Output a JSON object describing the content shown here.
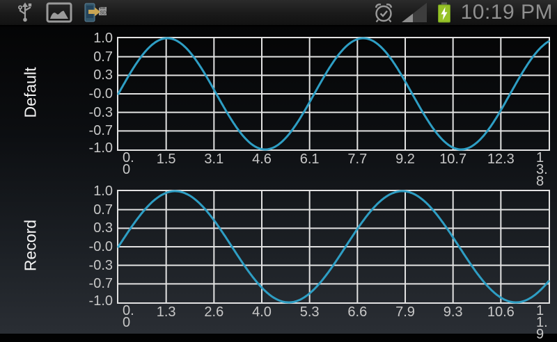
{
  "status_bar": {
    "time": "10:19 PM",
    "left_icons": [
      "usb-connected",
      "gallery",
      "move-to-sd"
    ],
    "right_icons": [
      "alarm-set",
      "signal-strength",
      "battery-charging"
    ],
    "sd_icon_label": "SD",
    "battery_color": "#97c227",
    "icon_color": "#9a9a9a",
    "time_color": "#8f8f8f"
  },
  "chart_data": [
    {
      "type": "line",
      "title": "Default",
      "function": "y = sin(x)",
      "amplitude": 1.0,
      "xlim": [
        0,
        13.8
      ],
      "ylim": [
        -1.0,
        1.0
      ],
      "x_tick_labels": [
        "0.0",
        "1.5",
        "3.1",
        "4.6",
        "6.1",
        "7.7",
        "9.2",
        "10.7",
        "12.3",
        "13.8"
      ],
      "y_tick_labels": [
        "1.0",
        "0.7",
        "0.3",
        "-0.0",
        "-0.3",
        "-0.7",
        "-1.0"
      ],
      "grid": true,
      "legend": false,
      "line_color": "#2e9ec4",
      "grid_color": "#e2e2e2",
      "label_color": "#c8c8c8"
    },
    {
      "type": "line",
      "title": "Record",
      "function": "y = sin(x)",
      "amplitude": 1.0,
      "xlim": [
        0,
        11.9
      ],
      "ylim": [
        -1.0,
        1.0
      ],
      "x_tick_labels": [
        "0.0",
        "1.3",
        "2.6",
        "4.0",
        "5.3",
        "6.6",
        "7.9",
        "9.3",
        "10.6",
        "11.9"
      ],
      "y_tick_labels": [
        "1.0",
        "0.7",
        "0.3",
        "-0.0",
        "-0.3",
        "-0.7",
        "-1.0"
      ],
      "grid": true,
      "legend": false,
      "line_color": "#2e9ec4",
      "grid_color": "#e2e2e2",
      "label_color": "#c8c8c8"
    }
  ]
}
